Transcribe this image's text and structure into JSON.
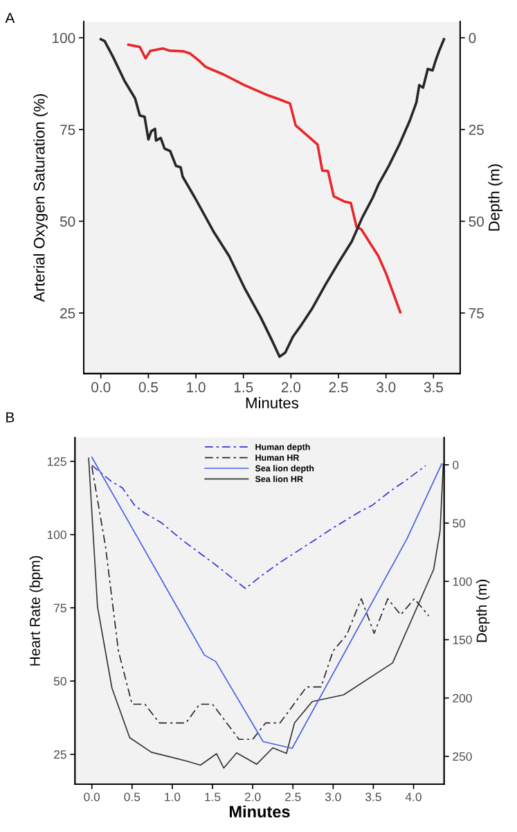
{
  "chart_data": [
    {
      "type": "line",
      "xlabel": "Minutes",
      "ylabel": "Arterial Oxygen Saturation (%)",
      "y2label": "Depth (m)",
      "annotations": [
        "A"
      ],
      "xlim": [
        -0.18,
        3.78
      ],
      "xticks": [
        {
          "value": 0,
          "label": "0.0"
        },
        {
          "value": 0.5,
          "label": "0.5"
        },
        {
          "value": 1,
          "label": "1.0"
        },
        {
          "value": 1.5,
          "label": "1.5"
        },
        {
          "value": 2,
          "label": "2.0"
        },
        {
          "value": 2.5,
          "label": "2.5"
        },
        {
          "value": 3,
          "label": "3.0"
        },
        {
          "value": 3.5,
          "label": "3.5"
        }
      ],
      "ylim": [
        8.5,
        104.4
      ],
      "yticks": [
        25,
        50,
        75,
        100
      ],
      "y2lim": [
        91.5,
        -4.4
      ],
      "y2ticks": [
        0,
        25,
        50,
        75
      ],
      "grid": false,
      "legend": false,
      "series": [
        {
          "color": "#e8262a",
          "line_style": "solid",
          "x": [
            0.29,
            0.41,
            0.47,
            0.52,
            0.65,
            0.72,
            0.87,
            0.94,
            1.04,
            1.1,
            1.29,
            1.51,
            1.75,
            1.88,
            1.99,
            2.05,
            2.17,
            2.28,
            2.33,
            2.39,
            2.45,
            2.57,
            2.63,
            2.69,
            2.74,
            2.92,
            3.0,
            3.15
          ],
          "values": [
            98.1,
            97.5,
            94.4,
            96.4,
            97.1,
            96.5,
            96.3,
            95.7,
            93.6,
            92.1,
            90.0,
            87.1,
            84.4,
            83.2,
            82.1,
            76.1,
            73.4,
            70.9,
            63.8,
            63.7,
            56.8,
            55.3,
            55.0,
            48.5,
            47.8,
            40.5,
            35.8,
            25.2
          ]
        },
        {
          "color": "#262626",
          "line_style": "solid",
          "axis": "y2",
          "x": [
            0.0,
            0.04,
            0.13,
            0.25,
            0.36,
            0.41,
            0.46,
            0.5,
            0.53,
            0.57,
            0.58,
            0.63,
            0.67,
            0.73,
            0.79,
            0.84,
            0.86,
            0.99,
            1.09,
            1.19,
            1.35,
            1.51,
            1.68,
            1.79,
            1.88,
            1.94,
            2.02,
            2.1,
            2.22,
            2.36,
            2.5,
            2.64,
            2.75,
            2.86,
            2.92,
            3.03,
            3.14,
            3.25,
            3.32,
            3.35,
            3.39,
            3.44,
            3.49,
            3.52,
            3.56,
            3.61
          ],
          "values": [
            0.4,
            0.9,
            5.3,
            11.8,
            16.5,
            21.2,
            21.5,
            27.7,
            25.5,
            24.8,
            28.0,
            27.3,
            30.2,
            30.9,
            34.9,
            35.3,
            37.8,
            43.6,
            48.3,
            53.0,
            59.5,
            68.1,
            76.1,
            81.9,
            86.9,
            85.8,
            81.5,
            78.6,
            73.9,
            67.4,
            61.3,
            55.5,
            49.0,
            43.6,
            40.0,
            34.9,
            29.1,
            22.6,
            17.6,
            12.9,
            13.6,
            8.5,
            8.9,
            6.4,
            3.5,
            0.4
          ]
        }
      ]
    },
    {
      "type": "line",
      "xlabel": "Minutes",
      "ylabel": "Heart Rate (bpm)",
      "y2label": "Depth (m)",
      "annotations": [
        "B"
      ],
      "xlim": [
        -0.21,
        4.38
      ],
      "xticks": [
        {
          "value": 0,
          "label": "0.0"
        },
        {
          "value": 0.5,
          "label": "0.5"
        },
        {
          "value": 1,
          "label": "1.0"
        },
        {
          "value": 1.5,
          "label": "1.5"
        },
        {
          "value": 2,
          "label": "2.0"
        },
        {
          "value": 2.5,
          "label": "2.5"
        },
        {
          "value": 3,
          "label": "3.0"
        },
        {
          "value": 3.5,
          "label": "3.5"
        },
        {
          "value": 4,
          "label": "4.0"
        }
      ],
      "ylim": [
        14.8,
        133.1
      ],
      "yticks": [
        25,
        50,
        75,
        100,
        125
      ],
      "y2lim": [
        273.9,
        -23.3
      ],
      "y2ticks": [
        0,
        50,
        100,
        150,
        200,
        250
      ],
      "grid": false,
      "legend": "top",
      "series": [
        {
          "name": "Human depth",
          "color": "#3333dd",
          "line_style": "dashed",
          "axis": "y2",
          "x": [
            0.0,
            0.24,
            0.38,
            0.53,
            0.66,
            0.86,
            1.12,
            1.32,
            1.52,
            1.91,
            2.11,
            2.34,
            2.7,
            3.0,
            3.33,
            3.49,
            3.72,
            3.89,
            4.15
          ],
          "values": [
            0.4,
            14.1,
            19.8,
            34.6,
            41.5,
            49.5,
            64.3,
            74.6,
            84.8,
            106.1,
            95.1,
            83.7,
            67.7,
            54.1,
            40.3,
            34.6,
            22.1,
            14.1,
            0.8
          ]
        },
        {
          "name": "Human HR",
          "color": "#262626",
          "line_style": "dashed",
          "x": [
            0.0,
            0.17,
            0.33,
            0.5,
            0.66,
            0.84,
            1.17,
            1.34,
            1.5,
            1.83,
            2.0,
            2.16,
            2.34,
            2.67,
            2.85,
            3.0,
            3.17,
            3.35,
            3.51,
            3.68,
            3.84,
            4.01,
            4.19
          ],
          "values": [
            123.2,
            95.9,
            60.3,
            42.1,
            42.1,
            35.7,
            35.7,
            42.1,
            42.1,
            30.1,
            30.1,
            35.7,
            35.7,
            48.0,
            48.0,
            60.3,
            65.8,
            78.1,
            66.3,
            78.1,
            72.6,
            78.1,
            72.2
          ]
        },
        {
          "name": "Sea lion depth",
          "color": "#4a5ee0",
          "line_style": "solid",
          "axis": "y2",
          "x": [
            0.0,
            1.4,
            1.54,
            2.13,
            2.49,
            3.92,
            4.35
          ],
          "values": [
            -6.5,
            163.2,
            168.7,
            237.4,
            243.2,
            63.2,
            -0.8
          ]
        },
        {
          "name": "Sea lion HR",
          "color": "#333333",
          "line_style": "solid",
          "x": [
            -0.04,
            0.07,
            0.25,
            0.47,
            0.74,
            1.19,
            1.35,
            1.55,
            1.64,
            1.8,
            2.05,
            2.25,
            2.42,
            2.52,
            2.74,
            3.13,
            3.74,
            4.25,
            4.33,
            4.37
          ],
          "values": [
            126.1,
            75.4,
            47.6,
            30.7,
            25.7,
            22.6,
            21.3,
            25.2,
            20.3,
            25.5,
            21.6,
            27.2,
            25.3,
            35.7,
            43.0,
            45.3,
            56.2,
            88.1,
            101.3,
            124.1
          ]
        }
      ]
    }
  ]
}
